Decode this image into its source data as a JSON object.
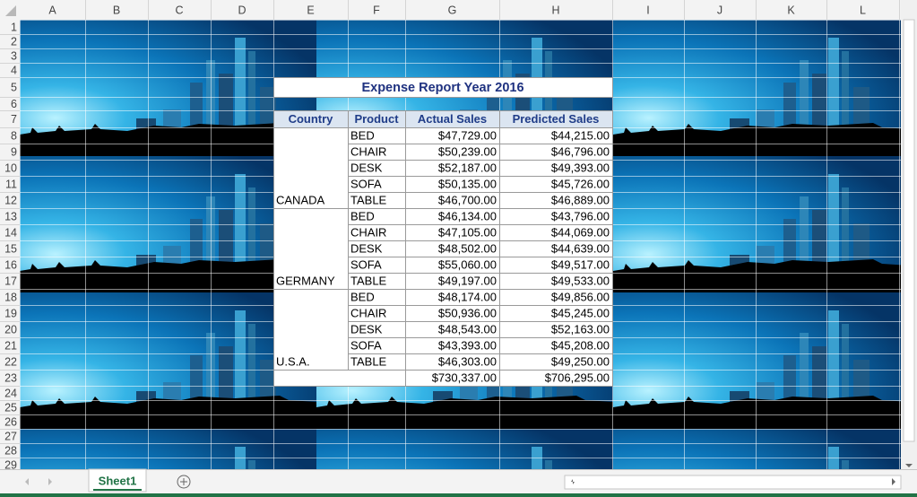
{
  "column_headers": [
    "A",
    "B",
    "C",
    "D",
    "E",
    "F",
    "G",
    "H",
    "I",
    "J",
    "K",
    "L"
  ],
  "row_numbers": [
    "1",
    "2",
    "3",
    "4",
    "5",
    "6",
    "7",
    "8",
    "9",
    "10",
    "11",
    "12",
    "13",
    "14",
    "15",
    "16",
    "17",
    "18",
    "19",
    "20",
    "21",
    "22",
    "23",
    "24",
    "25",
    "26",
    "27",
    "28",
    "29"
  ],
  "table": {
    "title": "Expense Report Year 2016",
    "header": [
      "Country",
      "Product",
      "Actual Sales",
      "Predicted Sales"
    ],
    "groups": [
      {
        "country": "CANADA",
        "rows": [
          [
            "BED",
            "$47,729.00",
            "$44,215.00"
          ],
          [
            "CHAIR",
            "$50,239.00",
            "$46,796.00"
          ],
          [
            "DESK",
            "$52,187.00",
            "$49,393.00"
          ],
          [
            "SOFA",
            "$50,135.00",
            "$45,726.00"
          ],
          [
            "TABLE",
            "$46,700.00",
            "$46,889.00"
          ]
        ]
      },
      {
        "country": "GERMANY",
        "rows": [
          [
            "BED",
            "$46,134.00",
            "$43,796.00"
          ],
          [
            "CHAIR",
            "$47,105.00",
            "$44,069.00"
          ],
          [
            "DESK",
            "$48,502.00",
            "$44,639.00"
          ],
          [
            "SOFA",
            "$55,060.00",
            "$49,517.00"
          ],
          [
            "TABLE",
            "$49,197.00",
            "$49,533.00"
          ]
        ]
      },
      {
        "country": "U.S.A.",
        "rows": [
          [
            "BED",
            "$48,174.00",
            "$49,856.00"
          ],
          [
            "CHAIR",
            "$50,936.00",
            "$45,245.00"
          ],
          [
            "DESK",
            "$48,543.00",
            "$52,163.00"
          ],
          [
            "SOFA",
            "$43,393.00",
            "$45,208.00"
          ],
          [
            "TABLE",
            "$46,303.00",
            "$49,250.00"
          ]
        ]
      }
    ],
    "totals": [
      "$730,337.00",
      "$706,295.00"
    ]
  },
  "sheet_tab": "Sheet1"
}
